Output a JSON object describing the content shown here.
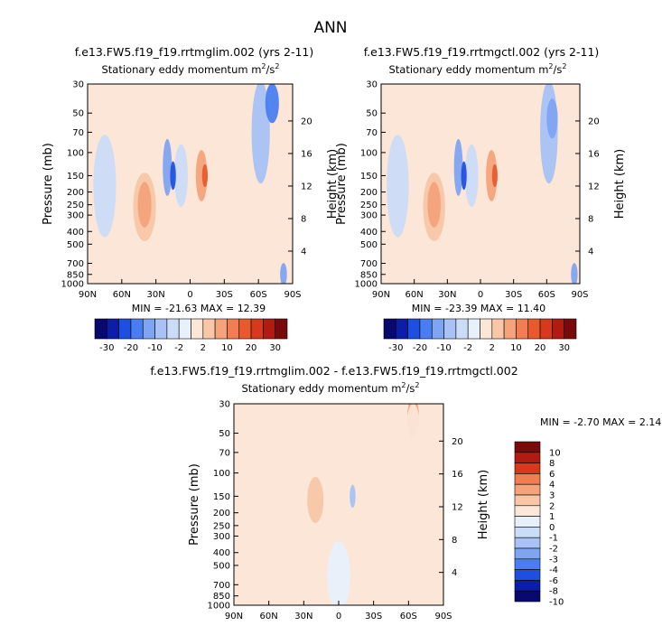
{
  "page_title": "ANN",
  "chart_data": [
    {
      "type": "heatmap",
      "title": "f.e13.FW5.f19_f19.rrtmglim.002 (yrs 2-11)",
      "subtitle": "Stationary eddy momentum  m",
      "units": "2/s2",
      "xlabel": "",
      "ylabel": "Pressure (mb)",
      "y2label": "Height (km)",
      "x_ticks": [
        "90N",
        "60N",
        "30N",
        "0",
        "30S",
        "60S",
        "90S"
      ],
      "x_values": [
        90,
        60,
        30,
        0,
        -30,
        -60,
        -90
      ],
      "y_ticks": [
        30,
        50,
        70,
        100,
        150,
        200,
        250,
        300,
        400,
        500,
        700,
        850,
        1000
      ],
      "y2_ticks": [
        20,
        16,
        12,
        8,
        4
      ],
      "ylim": [
        1000,
        30
      ],
      "log_y": true,
      "stats": "MIN = -21.63   MAX =  12.39",
      "min": -21.63,
      "max": 12.39,
      "colorbar_labels": [
        "-30",
        "-20",
        "-10",
        "-2",
        "2",
        "10",
        "20",
        "30"
      ]
    },
    {
      "type": "heatmap",
      "title": "f.e13.FW5.f19_f19.rrtmgctl.002 (yrs 2-11)",
      "subtitle": "Stationary eddy momentum  m",
      "units": "2/s2",
      "xlabel": "",
      "ylabel": "Pressure (mb)",
      "y2label": "Height (km)",
      "x_ticks": [
        "90N",
        "60N",
        "30N",
        "0",
        "30S",
        "60S",
        "90S"
      ],
      "x_values": [
        90,
        60,
        30,
        0,
        -30,
        -60,
        -90
      ],
      "y_ticks": [
        30,
        50,
        70,
        100,
        150,
        200,
        250,
        300,
        400,
        500,
        700,
        850,
        1000
      ],
      "y2_ticks": [
        20,
        16,
        12,
        8,
        4
      ],
      "ylim": [
        1000,
        30
      ],
      "log_y": true,
      "stats": "MIN = -23.39   MAX =  11.40",
      "min": -23.39,
      "max": 11.4,
      "colorbar_labels": [
        "-30",
        "-20",
        "-10",
        "-2",
        "2",
        "10",
        "20",
        "30"
      ]
    },
    {
      "type": "heatmap",
      "title": "f.e13.FW5.f19_f19.rrtmglim.002 - f.e13.FW5.f19_f19.rrtmgctl.002",
      "subtitle": "Stationary eddy momentum  m",
      "units": "2/s2",
      "xlabel": "",
      "ylabel": "Pressure (mb)",
      "y2label": "Height (km)",
      "x_ticks": [
        "90N",
        "60N",
        "30N",
        "0",
        "30S",
        "60S",
        "90S"
      ],
      "x_values": [
        90,
        60,
        30,
        0,
        -30,
        -60,
        -90
      ],
      "y_ticks": [
        30,
        50,
        70,
        100,
        150,
        200,
        250,
        300,
        400,
        500,
        700,
        850,
        1000
      ],
      "y2_ticks": [
        20,
        16,
        12,
        8,
        4
      ],
      "ylim": [
        1000,
        30
      ],
      "log_y": true,
      "stats": "MIN =  -2.70   MAX =   2.14",
      "min": -2.7,
      "max": 2.14,
      "colorbar_labels": [
        "10",
        "8",
        "6",
        "4",
        "3",
        "2",
        "1",
        "0",
        "-1",
        "-2",
        "-3",
        "-4",
        "-6",
        "-8",
        "-10"
      ]
    }
  ],
  "colors": {
    "scale16": [
      "#08086e",
      "#0a1ea8",
      "#1f4fe0",
      "#4a7ef0",
      "#7fa4f2",
      "#a8c2f5",
      "#cbdcf7",
      "#e8f0fb",
      "#fbe6d8",
      "#f7c7a8",
      "#f4a37a",
      "#f07e52",
      "#e85a2e",
      "#d63a1a",
      "#b01c10",
      "#7a0a0a"
    ],
    "diff16": [
      "#7a0a0a",
      "#b01c10",
      "#d63a1a",
      "#f07e52",
      "#f4a37a",
      "#f7c7a8",
      "#fbe6d8",
      "#e8f0fb",
      "#cbdcf7",
      "#a8c2f5",
      "#7fa4f2",
      "#4a7ef0",
      "#1f4fe0",
      "#0a1ea8",
      "#08086e"
    ],
    "bg_pos": "#fbe6d8",
    "bg_neg": "#cbdcf7"
  }
}
